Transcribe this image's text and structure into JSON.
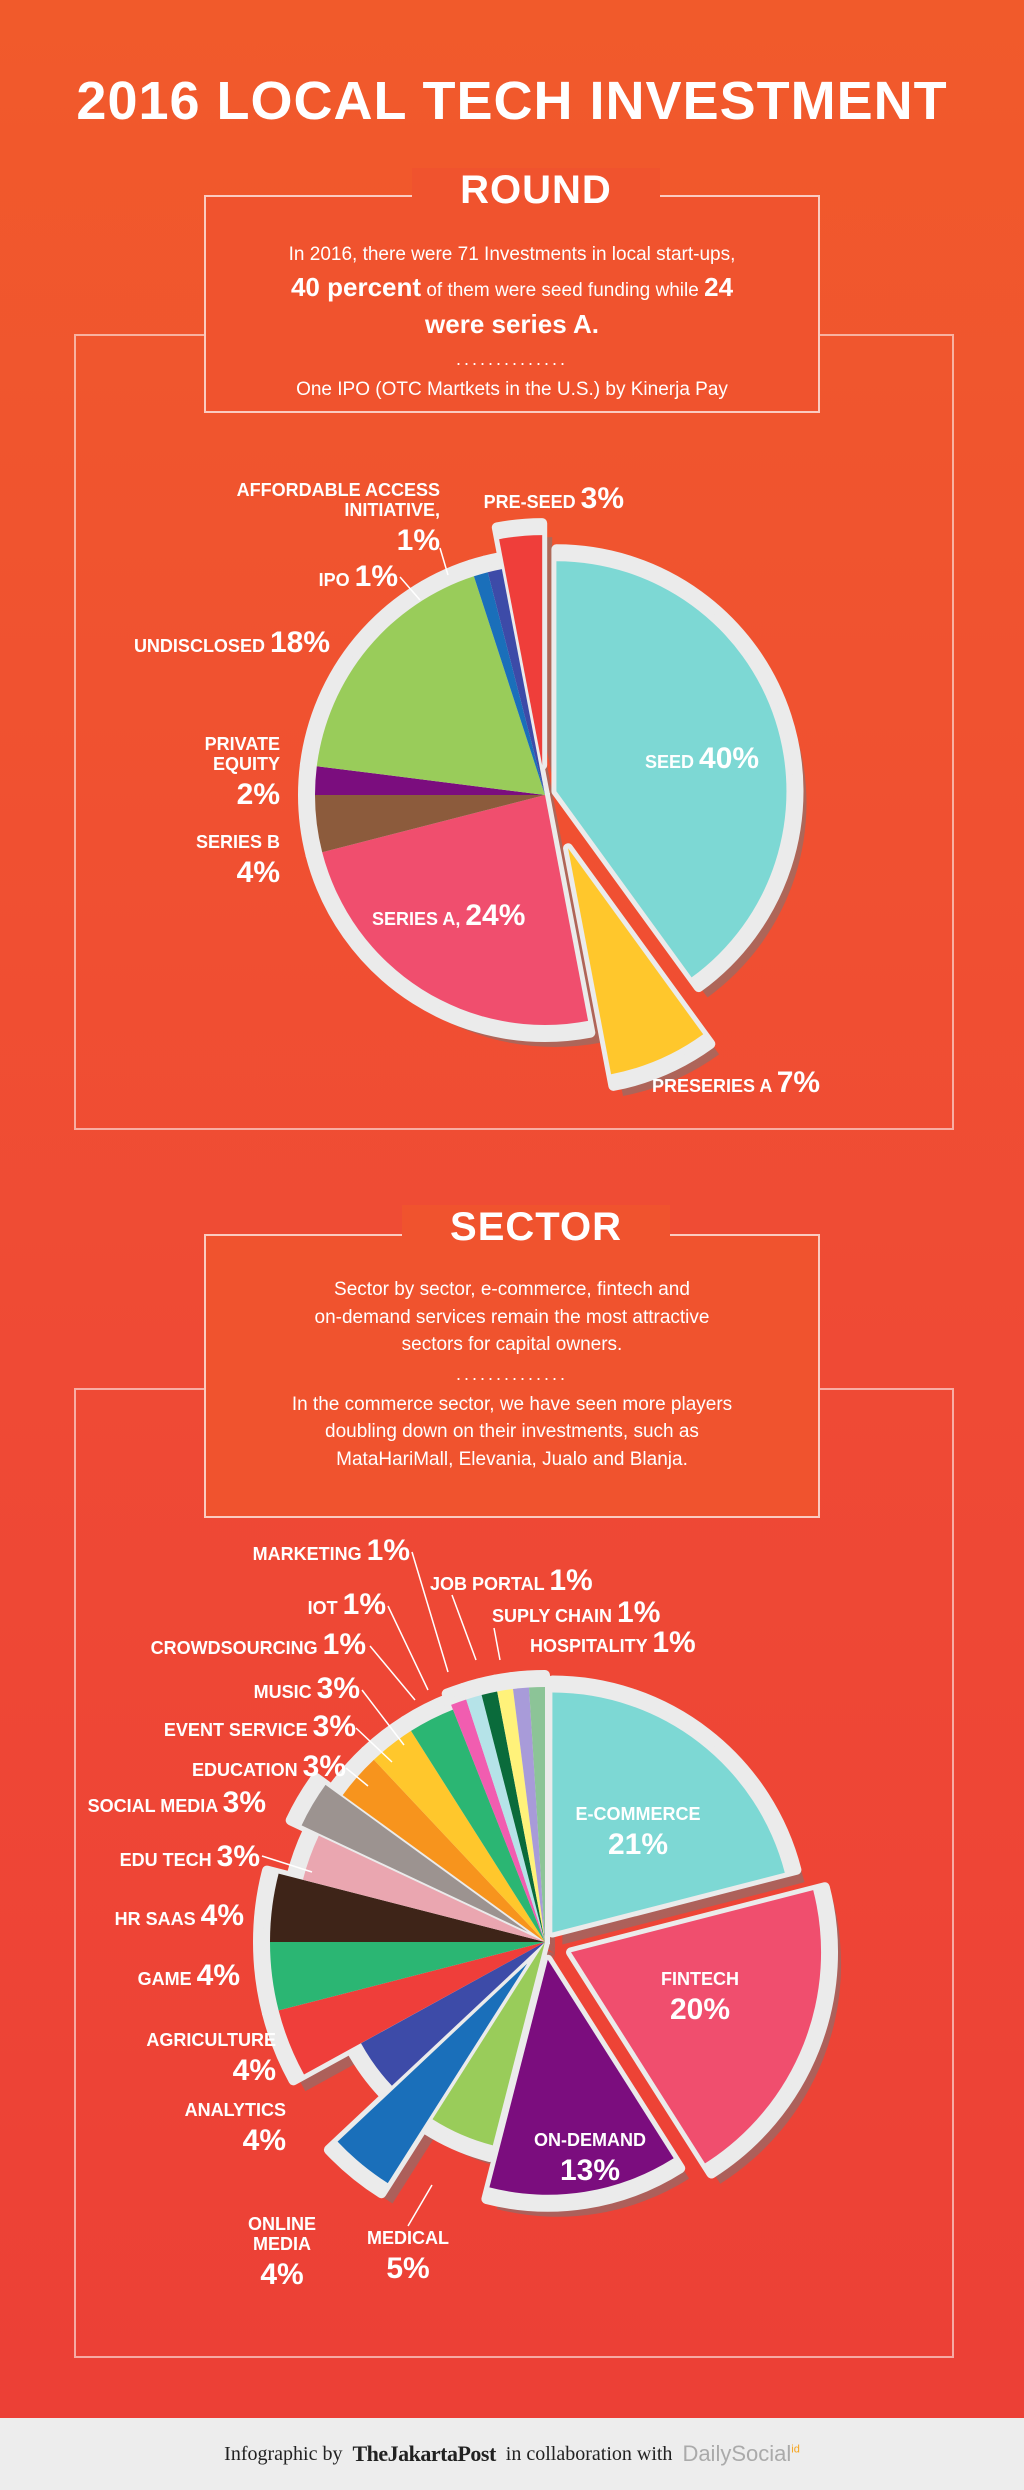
{
  "title": "2016 LOCAL TECH INVESTMENT",
  "round": {
    "heading": "ROUND",
    "line1": "In 2016, there were 71 Investments in local start-ups,",
    "line2_bold_a": "40 percent",
    "line2_mid": " of them were seed funding while ",
    "line2_bold_b": "24",
    "line3_bold": "were series A.",
    "dots": "..............",
    "line4": "One IPO (OTC Martkets in the U.S.) by Kinerja Pay"
  },
  "sector": {
    "heading": "SECTOR",
    "line1": "Sector by sector, e-commerce, fintech and",
    "line2": "on-demand services remain the most attractive",
    "line3": "sectors for capital owners.",
    "dots": "..............",
    "line4": "In the commerce sector, we have seen more players",
    "line5": "doubling down on their investments, such as",
    "line6": "MataHariMall, Elevania, Jualo and Blanja."
  },
  "footer": {
    "prefix": "Infographic by",
    "brand": "TheJakartaPost",
    "middle": "in collaboration with",
    "partner": "DailySocial",
    "badge": "id"
  },
  "chart_data": [
    {
      "type": "pie",
      "slices": [
        {
          "label": "SEED",
          "value": 40,
          "text": "40%",
          "color": "#7dd8d4"
        },
        {
          "label": "PRESERIES A",
          "value": 7,
          "text": "7%",
          "color": "#ffc72c"
        },
        {
          "label": "SERIES A,",
          "value": 24,
          "text": "24%",
          "color": "#f04e6e"
        },
        {
          "label": "SERIES B",
          "value": 4,
          "text": "4%",
          "color": "#8c5b3c"
        },
        {
          "label": "PRIVATE EQUITY",
          "value": 2,
          "text": "2%",
          "color": "#7b0d7e"
        },
        {
          "label": "UNDISCLOSED",
          "value": 18,
          "text": "18%",
          "color": "#99cc5a"
        },
        {
          "label": "IPO",
          "value": 1,
          "text": "1%",
          "color": "#1a6fba"
        },
        {
          "label": "AFFORDABLE ACCESS INITIATIVE,",
          "value": 1,
          "text": "1%",
          "color": "#3d4ba8"
        },
        {
          "label": "PRE-SEED",
          "value": 3,
          "text": "3%",
          "color": "#ef3e3a"
        }
      ]
    },
    {
      "type": "pie",
      "slices": [
        {
          "label": "E-COMMERCE",
          "value": 21,
          "text": "21%",
          "color": "#7dd8d4"
        },
        {
          "label": "FINTECH",
          "value": 20,
          "text": "20%",
          "color": "#f04e6e"
        },
        {
          "label": "ON-DEMAND",
          "value": 13,
          "text": "13%",
          "color": "#7b0d7e"
        },
        {
          "label": "MEDICAL",
          "value": 5,
          "text": "5%",
          "color": "#99cc5a"
        },
        {
          "label": "ONLINE MEDIA",
          "value": 4,
          "text": "4%",
          "color": "#1a6fba"
        },
        {
          "label": "ANALYTICS",
          "value": 4,
          "text": "4%",
          "color": "#3d4ba8"
        },
        {
          "label": "AGRICULTURE",
          "value": 4,
          "text": "4%",
          "color": "#ef3e3a"
        },
        {
          "label": "GAME",
          "value": 4,
          "text": "4%",
          "color": "#2bb673"
        },
        {
          "label": "HR SAAS",
          "value": 4,
          "text": "4%",
          "color": "#3e2418"
        },
        {
          "label": "EDU TECH",
          "value": 3,
          "text": "3%",
          "color": "#eaa6b0"
        },
        {
          "label": "SOCIAL MEDIA",
          "value": 3,
          "text": "3%",
          "color": "#9c9390"
        },
        {
          "label": "EDUCATION",
          "value": 3,
          "text": "3%",
          "color": "#f7941d"
        },
        {
          "label": "EVENT SERVICE",
          "value": 3,
          "text": "3%",
          "color": "#ffc72c"
        },
        {
          "label": "MUSIC",
          "value": 3,
          "text": "3%",
          "color": "#2bb673"
        },
        {
          "label": "CROWDSOURCING",
          "value": 1,
          "text": "1%",
          "color": "#f15db0"
        },
        {
          "label": "IOT",
          "value": 1,
          "text": "1%",
          "color": "#b5e3e8"
        },
        {
          "label": "MARKETING",
          "value": 1,
          "text": "1%",
          "color": "#0a6b3b"
        },
        {
          "label": "JOB PORTAL",
          "value": 1,
          "text": "1%",
          "color": "#fff27a"
        },
        {
          "label": "SUPLY CHAIN",
          "value": 1,
          "text": "1%",
          "color": "#a89bd9"
        },
        {
          "label": "HOSPITALITY",
          "value": 1,
          "text": "1%",
          "color": "#8cc497"
        }
      ]
    }
  ]
}
